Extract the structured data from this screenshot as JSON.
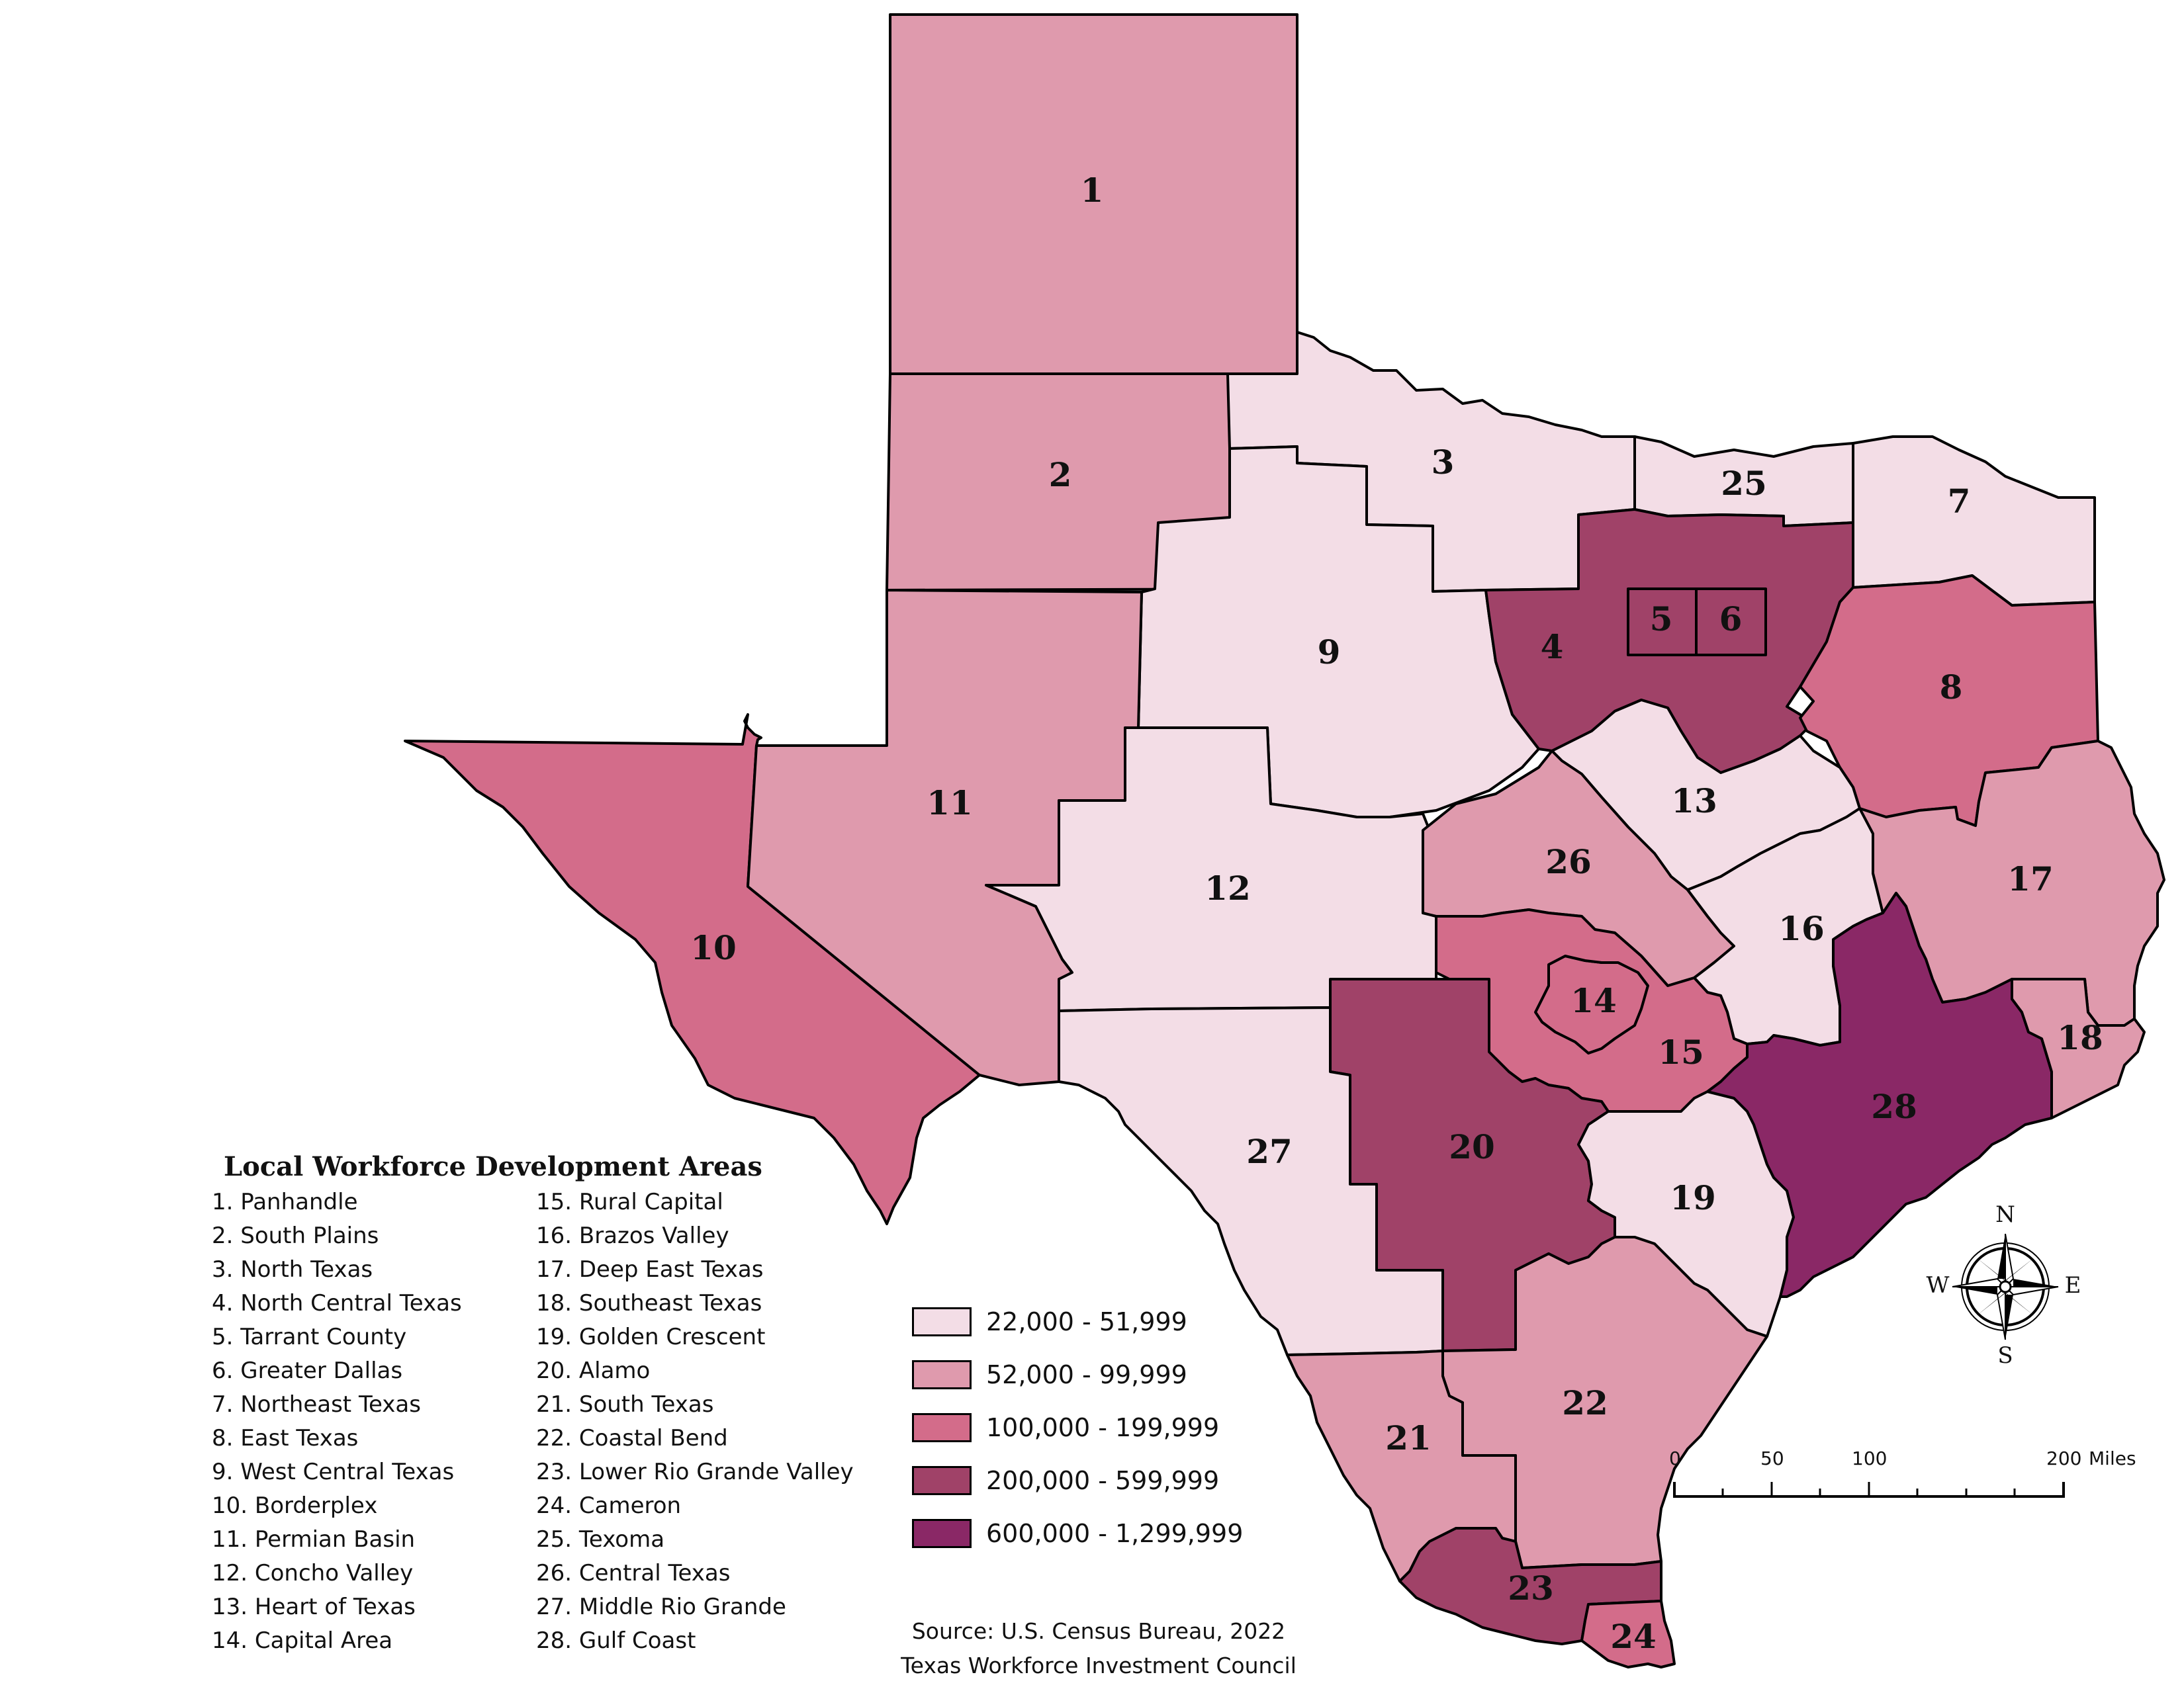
{
  "legend": {
    "title": "Local Workforce Development Areas",
    "areas": [
      "1. Panhandle",
      "2. South Plains",
      "3. North Texas",
      "4. North Central Texas",
      "5. Tarrant County",
      "6. Greater Dallas",
      "7. Northeast Texas",
      "8. East Texas",
      "9. West Central Texas",
      "10. Borderplex",
      "11. Permian Basin",
      "12. Concho Valley",
      "13. Heart of Texas",
      "14. Capital Area",
      "15. Rural Capital",
      "16. Brazos Valley",
      "17. Deep East Texas",
      "18. Southeast Texas",
      "19. Golden Crescent",
      "20. Alamo",
      "21. South Texas",
      "22. Coastal Bend",
      "23. Lower Rio Grande Valley",
      "24. Cameron",
      "25. Texoma",
      "26. Central Texas",
      "27. Middle Rio Grande",
      "28. Gulf Coast"
    ]
  },
  "color_classes": [
    {
      "label": "22,000 - 51,999",
      "color": "#f3dde6"
    },
    {
      "label": "52,000 - 99,999",
      "color": "#df9aad"
    },
    {
      "label": "100,000 - 199,999",
      "color": "#d36c8a"
    },
    {
      "label": "200,000 - 599,999",
      "color": "#a04268"
    },
    {
      "label": "600,000 - 1,299,999",
      "color": "#8a2866"
    }
  ],
  "regions": [
    {
      "id": "1",
      "class": 1
    },
    {
      "id": "2",
      "class": 1
    },
    {
      "id": "3",
      "class": 0
    },
    {
      "id": "4",
      "class": 3
    },
    {
      "id": "5",
      "class": 3
    },
    {
      "id": "6",
      "class": 3
    },
    {
      "id": "7",
      "class": 0
    },
    {
      "id": "8",
      "class": 2
    },
    {
      "id": "9",
      "class": 0
    },
    {
      "id": "10",
      "class": 2
    },
    {
      "id": "11",
      "class": 1
    },
    {
      "id": "12",
      "class": 0
    },
    {
      "id": "13",
      "class": 0
    },
    {
      "id": "14",
      "class": 2
    },
    {
      "id": "15",
      "class": 2
    },
    {
      "id": "16",
      "class": 0
    },
    {
      "id": "17",
      "class": 1
    },
    {
      "id": "18",
      "class": 1
    },
    {
      "id": "19",
      "class": 0
    },
    {
      "id": "20",
      "class": 3
    },
    {
      "id": "21",
      "class": 1
    },
    {
      "id": "22",
      "class": 1
    },
    {
      "id": "23",
      "class": 3
    },
    {
      "id": "24",
      "class": 2
    },
    {
      "id": "25",
      "class": 0
    },
    {
      "id": "26",
      "class": 1
    },
    {
      "id": "27",
      "class": 0
    },
    {
      "id": "28",
      "class": 4
    }
  ],
  "scale_bar": {
    "ticks": [
      "0",
      "50",
      "100",
      "200"
    ],
    "unit": "Miles"
  },
  "compass": {
    "n": "N",
    "s": "S",
    "e": "E",
    "w": "W"
  },
  "source": {
    "line1": "Source: U.S. Census Bureau, 2022",
    "line2": "Texas Workforce Investment Council"
  }
}
